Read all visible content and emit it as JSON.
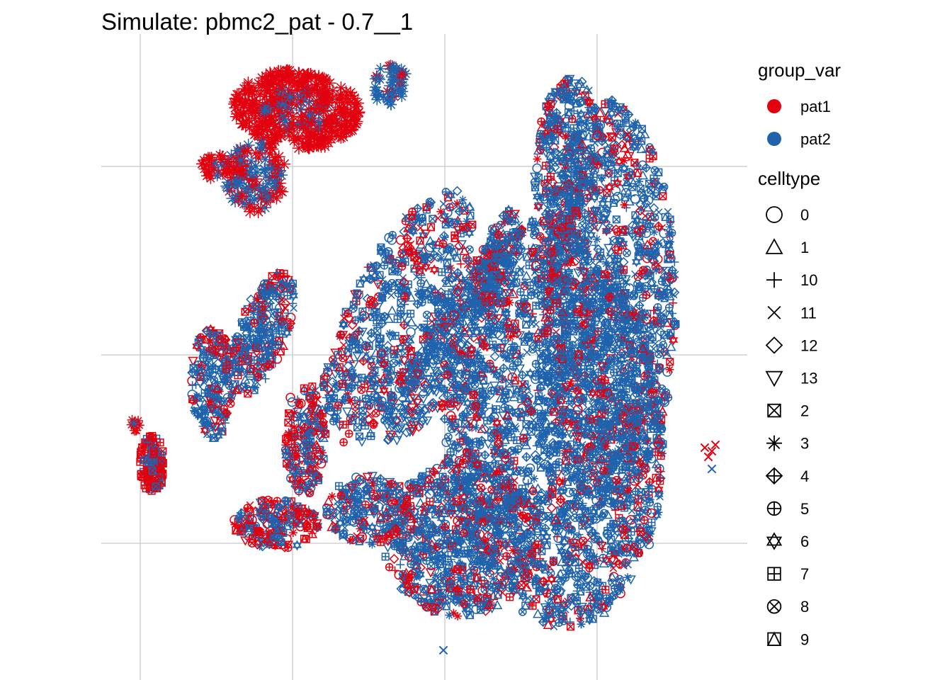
{
  "chart_data": {
    "type": "scatter",
    "title": "Simulate: pbmc2_pat - 0.7__1",
    "xlabel": "",
    "ylabel": "",
    "x_tick_labels": [],
    "y_tick_labels": [],
    "grid": true,
    "legend_placement": "right",
    "colors": {
      "pat1": "#e3000f",
      "pat2": "#1f63ad",
      "grid": "#c8c8c8"
    },
    "legends": [
      {
        "title": "group_var",
        "entries": [
          {
            "label": "pat1",
            "color": "#e3000f",
            "shape": "filled-circle"
          },
          {
            "label": "pat2",
            "color": "#1f63ad",
            "shape": "filled-circle"
          }
        ]
      },
      {
        "title": "celltype",
        "entries": [
          {
            "label": "0",
            "shape": "circle"
          },
          {
            "label": "1",
            "shape": "triangle-up"
          },
          {
            "label": "10",
            "shape": "plus"
          },
          {
            "label": "11",
            "shape": "cross"
          },
          {
            "label": "12",
            "shape": "diamond"
          },
          {
            "label": "13",
            "shape": "triangle-down"
          },
          {
            "label": "2",
            "shape": "square-cross"
          },
          {
            "label": "3",
            "shape": "asterisk"
          },
          {
            "label": "4",
            "shape": "diamond-plus"
          },
          {
            "label": "5",
            "shape": "circle-plus"
          },
          {
            "label": "6",
            "shape": "star-of-david"
          },
          {
            "label": "7",
            "shape": "square-plus"
          },
          {
            "label": "8",
            "shape": "circle-cross"
          },
          {
            "label": "9",
            "shape": "square-triangle"
          }
        ]
      }
    ],
    "series": [
      {
        "name": "pat1",
        "color": "#e3000f"
      },
      {
        "name": "pat2",
        "color": "#1f63ad"
      }
    ],
    "clusters": [
      {
        "cluster": "upper-left",
        "dominant_group": "pat1",
        "celltype": "3"
      },
      {
        "cluster": "far-left small",
        "dominant_group": "pat1",
        "celltype": "7"
      },
      {
        "cluster": "far-right outliers",
        "dominant_group": "pat1",
        "celltype": "11"
      },
      {
        "cluster": "large main body",
        "dominant_group": "pat2",
        "celltype": "mixed"
      }
    ]
  }
}
